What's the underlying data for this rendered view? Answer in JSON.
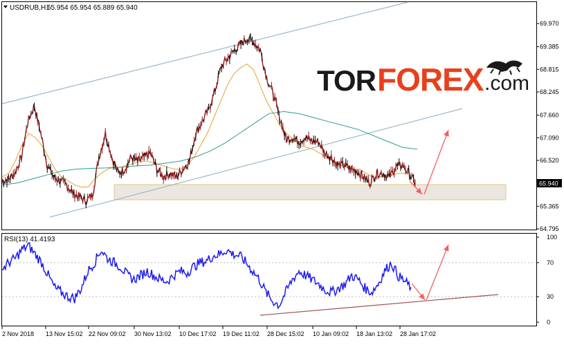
{
  "chart_data": {
    "type": "line",
    "title": "USDRUB,H1  65.954 65.954 65.889 65.940",
    "symbol": "USDRUB,H1",
    "ohlc_readout": "65.954 65.954 65.889 65.940",
    "y_ticks": [
      "69.970",
      "69.385",
      "68.815",
      "68.245",
      "67.660",
      "67.090",
      "66.520",
      "65.940",
      "65.365",
      "64.795"
    ],
    "ylim": [
      64.795,
      69.97
    ],
    "current_price_label": "65.940",
    "x_ticks": [
      "2 Nov 2018",
      "13 Nov 15:02",
      "22 Nov 09:02",
      "30 Nov 13:02",
      "10 Dec 17:02",
      "19 Dec 11:02",
      "28 Dec 15:02",
      "10 Jan 09:02",
      "18 Jan 13:02",
      "28 Jan 17:02"
    ],
    "price_series": [
      66.0,
      66.05,
      66.2,
      66.6,
      67.5,
      67.9,
      67.2,
      66.4,
      66.1,
      66.0,
      65.9,
      65.7,
      65.6,
      65.5,
      65.65,
      66.6,
      67.2,
      66.6,
      66.2,
      66.3,
      66.6,
      66.5,
      66.6,
      66.7,
      66.3,
      66.1,
      66.2,
      66.1,
      66.3,
      66.5,
      67.2,
      67.5,
      67.8,
      68.3,
      68.9,
      69.1,
      69.3,
      69.45,
      69.6,
      69.5,
      69.3,
      68.6,
      68.2,
      67.6,
      67.05,
      67.1,
      67.0,
      67.1,
      67.0,
      67.0,
      66.7,
      66.6,
      66.4,
      66.4,
      66.3,
      66.25,
      66.1,
      65.95,
      66.2,
      66.2,
      66.1,
      66.35,
      66.4,
      66.2,
      65.95
    ],
    "ma_fast": [
      66.1,
      66.2,
      66.5,
      66.9,
      67.2,
      67.1,
      66.9,
      66.6,
      66.3,
      66.1,
      66.0,
      65.9,
      65.85,
      65.85,
      66.05,
      66.2,
      66.3,
      66.35,
      66.35,
      66.4,
      66.45,
      66.5,
      66.5,
      66.45,
      66.4,
      66.35,
      66.3,
      66.3,
      66.4,
      66.6,
      66.9,
      67.2,
      67.6,
      68.0,
      68.4,
      68.7,
      68.85,
      68.95,
      68.8,
      68.4,
      68.0,
      67.7,
      67.4,
      67.2,
      67.05,
      66.9,
      66.85,
      66.8,
      66.7,
      66.6,
      66.5,
      66.4,
      66.35,
      66.3,
      66.3,
      66.2,
      66.1,
      66.1,
      66.12,
      66.15,
      66.2,
      66.2,
      66.2
    ],
    "ma_slow": [
      65.9,
      65.95,
      66.05,
      66.15,
      66.25,
      66.3,
      66.32,
      66.33,
      66.35,
      66.38,
      66.4,
      66.45,
      66.5,
      66.6,
      66.75,
      66.95,
      67.2,
      67.45,
      67.7,
      67.75,
      67.7,
      67.6,
      67.5,
      67.4,
      67.3,
      67.15,
      67.0,
      66.85,
      66.8
    ],
    "support_zone": [
      65.5,
      65.82
    ],
    "rsi_label": "RSI(13) 41.4193",
    "rsi_value": 41.4193,
    "rsi_ylim": [
      0,
      100
    ],
    "rsi_ticks": [
      "100",
      "70",
      "30",
      "0"
    ],
    "rsi_series": [
      62,
      70,
      75,
      85,
      90,
      80,
      70,
      55,
      40,
      35,
      30,
      28,
      40,
      60,
      70,
      85,
      75,
      70,
      65,
      55,
      50,
      55,
      60,
      55,
      50,
      48,
      55,
      60,
      58,
      65,
      70,
      72,
      78,
      80,
      85,
      80,
      78,
      70,
      60,
      50,
      35,
      25,
      20,
      35,
      50,
      60,
      55,
      50,
      45,
      38,
      35,
      40,
      45,
      55,
      50,
      40,
      35,
      45,
      60,
      70,
      55,
      48,
      41
    ],
    "watermark": {
      "part1": "TOR",
      "part2": "FOREX",
      "part3": ".com"
    },
    "colors": {
      "price_line": "#8b1a1a",
      "ma_fast": "#e8a030",
      "ma_slow": "#2a9d8f",
      "channel": "#9fb7c8",
      "rsi_line": "#1a1af0",
      "rsi_trend": "#a05050",
      "arrow": "#f06060",
      "zone_fill": "#ebe7e0",
      "zone_border": "#e2c785",
      "price_tag_bg": "#000000",
      "watermark_dark": "#1a1a1a",
      "watermark_red": "#e8401c"
    }
  }
}
